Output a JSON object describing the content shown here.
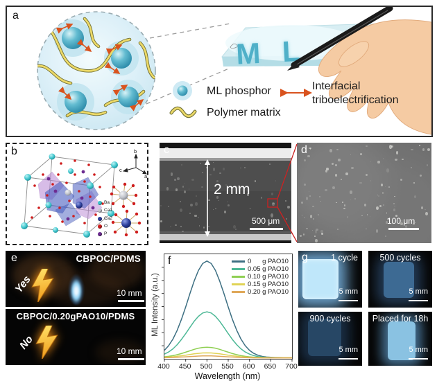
{
  "figure_labels": {
    "a": "a",
    "b": "b",
    "c": "c",
    "d": "d",
    "e": "e",
    "f": "f",
    "g": "g"
  },
  "panel_a": {
    "slab_text": "M L",
    "legend": {
      "ml_phosphor": "ML phosphor",
      "interfacial_line1": "Interfacial",
      "interfacial_line2": "triboelectrification",
      "polymer_matrix": "Polymer matrix"
    }
  },
  "panel_b": {
    "atoms": [
      {
        "label": "Ba",
        "color": "#3fc6cd"
      },
      {
        "label": "Ca1",
        "color": "#c6c9cf"
      },
      {
        "label": "Ca2",
        "color": "#2c3e9b"
      },
      {
        "label": "O",
        "color": "#cf1d1d"
      },
      {
        "label": "P",
        "color": "#6d2c91"
      }
    ],
    "axis_labels": {
      "b": "b",
      "c": "c",
      "a": "a"
    }
  },
  "panel_c": {
    "thickness_label": "2 mm",
    "scale_bar": "500 μm"
  },
  "panel_d": {
    "scale_bar": "100 μm"
  },
  "panel_e": {
    "top": {
      "title": "CBPOC/PDMS",
      "answer": "Yes",
      "scale_bar": "10 mm"
    },
    "bottom": {
      "title": "CBPOC/0.20gPAO10/PDMS",
      "answer": "No",
      "scale_bar": "10 mm"
    }
  },
  "panel_g": {
    "tiles": [
      {
        "caption": "1 cycle",
        "scale_bar": "5 mm"
      },
      {
        "caption": "500 cycles",
        "scale_bar": "5 mm"
      },
      {
        "caption": "900 cycles",
        "scale_bar": "5 mm"
      },
      {
        "caption": "Placed for 18h",
        "scale_bar": "5 mm"
      }
    ]
  },
  "chart_data": {
    "type": "line",
    "xlabel": "Wavelength (nm)",
    "ylabel": "ML Intensity (a.u.)",
    "xlim": [
      400,
      700
    ],
    "ylim": [
      0,
      1.05
    ],
    "x_ticks": [
      400,
      450,
      500,
      550,
      600,
      650,
      700
    ],
    "grid": false,
    "legend_position": "top-right",
    "x": [
      400,
      410,
      420,
      430,
      440,
      450,
      460,
      470,
      480,
      490,
      500,
      510,
      520,
      530,
      540,
      550,
      560,
      570,
      580,
      590,
      600,
      610,
      620,
      630,
      640,
      650,
      660,
      670,
      680,
      690,
      700
    ],
    "series": [
      {
        "label": "0      g PAO10",
        "color": "#3d6f82",
        "values": [
          0.085,
          0.132,
          0.198,
          0.286,
          0.395,
          0.521,
          0.654,
          0.781,
          0.887,
          0.957,
          0.982,
          0.957,
          0.887,
          0.781,
          0.654,
          0.521,
          0.395,
          0.286,
          0.198,
          0.132,
          0.085,
          0.055,
          0.036,
          0.024,
          0.018,
          0.015,
          0.013,
          0.013,
          0.012,
          0.012,
          0.012
        ]
      },
      {
        "label": "0.05 g PAO10",
        "color": "#4db896",
        "values": [
          0.047,
          0.069,
          0.1,
          0.142,
          0.194,
          0.253,
          0.316,
          0.377,
          0.427,
          0.46,
          0.472,
          0.46,
          0.427,
          0.377,
          0.316,
          0.253,
          0.194,
          0.142,
          0.1,
          0.069,
          0.047,
          0.032,
          0.023,
          0.018,
          0.015,
          0.013,
          0.013,
          0.012,
          0.012,
          0.012,
          0.012
        ]
      },
      {
        "label": "0.10 g PAO10",
        "color": "#8fcf52",
        "values": [
          0.02,
          0.025,
          0.032,
          0.042,
          0.053,
          0.067,
          0.081,
          0.095,
          0.107,
          0.114,
          0.117,
          0.114,
          0.107,
          0.095,
          0.081,
          0.067,
          0.053,
          0.042,
          0.032,
          0.025,
          0.02,
          0.017,
          0.015,
          0.013,
          0.013,
          0.012,
          0.012,
          0.012,
          0.012,
          0.012,
          0.012
        ]
      },
      {
        "label": "0.15 g PAO10",
        "color": "#e0d355",
        "values": [
          0.016,
          0.018,
          0.021,
          0.026,
          0.031,
          0.037,
          0.044,
          0.05,
          0.055,
          0.059,
          0.06,
          0.059,
          0.055,
          0.05,
          0.044,
          0.037,
          0.031,
          0.026,
          0.021,
          0.018,
          0.016,
          0.014,
          0.013,
          0.012,
          0.012,
          0.011,
          0.011,
          0.011,
          0.011,
          0.011,
          0.011
        ]
      },
      {
        "label": "0.20 g PAO10",
        "color": "#dfa85a",
        "values": [
          0.011,
          0.012,
          0.014,
          0.016,
          0.018,
          0.02,
          0.023,
          0.025,
          0.028,
          0.029,
          0.03,
          0.029,
          0.028,
          0.025,
          0.023,
          0.02,
          0.018,
          0.016,
          0.014,
          0.012,
          0.011,
          0.01,
          0.01,
          0.009,
          0.009,
          0.009,
          0.009,
          0.009,
          0.009,
          0.009,
          0.009
        ]
      }
    ]
  }
}
